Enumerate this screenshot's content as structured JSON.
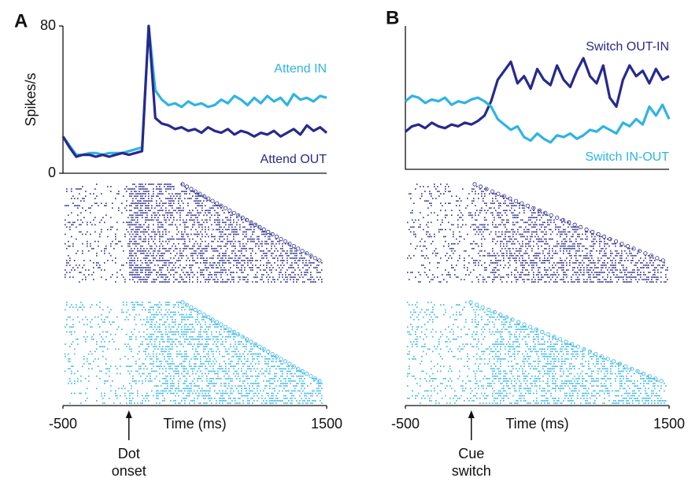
{
  "chart_data": [
    {
      "type": "line",
      "panel_label": "A",
      "ylabel": "Spikes/s",
      "xlabel": "Time (ms)",
      "xlim": [
        -500,
        1500
      ],
      "xticks": [
        -500,
        1500
      ],
      "ylim": [
        0,
        80
      ],
      "yticks": [
        0,
        80
      ],
      "annotation": {
        "x": 0,
        "lines": [
          "Dot",
          "onset"
        ]
      },
      "x": [
        -500,
        -450,
        -400,
        -350,
        -300,
        -250,
        -200,
        -150,
        -100,
        -50,
        0,
        50,
        100,
        150,
        200,
        250,
        300,
        350,
        400,
        450,
        500,
        550,
        600,
        650,
        700,
        750,
        800,
        850,
        900,
        950,
        1000,
        1050,
        1100,
        1150,
        1200,
        1250,
        1300,
        1350,
        1400,
        1450,
        1500
      ],
      "series": [
        {
          "name": "Attend IN",
          "color": "#2fb3e5",
          "values": [
            20,
            15,
            10,
            10,
            11,
            11,
            10,
            11,
            11,
            11,
            12,
            13,
            14,
            80,
            45,
            40,
            37,
            38,
            36,
            39,
            37,
            38,
            36,
            37,
            40,
            38,
            42,
            40,
            37,
            41,
            38,
            42,
            39,
            41,
            37,
            43,
            40,
            41,
            39,
            42,
            41
          ]
        },
        {
          "name": "Attend OUT",
          "color": "#27298d",
          "values": [
            20,
            14,
            9,
            10,
            10,
            9,
            10,
            9,
            10,
            11,
            10,
            11,
            12,
            80,
            30,
            27,
            26,
            24,
            25,
            23,
            24,
            22,
            25,
            23,
            22,
            24,
            21,
            23,
            22,
            20,
            22,
            21,
            23,
            20,
            22,
            24,
            21,
            26,
            23,
            25,
            22
          ]
        }
      ]
    },
    {
      "type": "line",
      "panel_label": "B",
      "xlabel": "Time (ms)",
      "xlim": [
        -500,
        1500
      ],
      "xticks": [
        -500,
        1500
      ],
      "ylim": [
        0,
        80
      ],
      "annotation": {
        "x": 0,
        "lines": [
          "Cue",
          "switch"
        ]
      },
      "x": [
        -500,
        -450,
        -400,
        -350,
        -300,
        -250,
        -200,
        -150,
        -100,
        -50,
        0,
        50,
        100,
        150,
        200,
        250,
        300,
        350,
        400,
        450,
        500,
        550,
        600,
        650,
        700,
        750,
        800,
        850,
        900,
        950,
        1000,
        1050,
        1100,
        1150,
        1200,
        1250,
        1300,
        1350,
        1400,
        1450,
        1500
      ],
      "series": [
        {
          "name": "Switch OUT-IN",
          "color": "#27298d",
          "values": [
            21,
            24,
            25,
            23,
            26,
            24,
            23,
            25,
            24,
            26,
            25,
            27,
            30,
            38,
            50,
            55,
            60,
            48,
            52,
            45,
            56,
            50,
            47,
            58,
            50,
            46,
            55,
            62,
            52,
            48,
            58,
            40,
            35,
            50,
            58,
            52,
            55,
            48,
            56,
            50,
            52
          ]
        },
        {
          "name": "Switch IN-OUT",
          "color": "#2fb3e5",
          "values": [
            38,
            41,
            40,
            37,
            39,
            38,
            40,
            36,
            38,
            37,
            39,
            40,
            38,
            35,
            28,
            25,
            22,
            24,
            18,
            16,
            20,
            17,
            15,
            19,
            18,
            20,
            17,
            19,
            22,
            21,
            24,
            22,
            20,
            26,
            24,
            28,
            25,
            35,
            30,
            36,
            28
          ]
        }
      ]
    }
  ]
}
